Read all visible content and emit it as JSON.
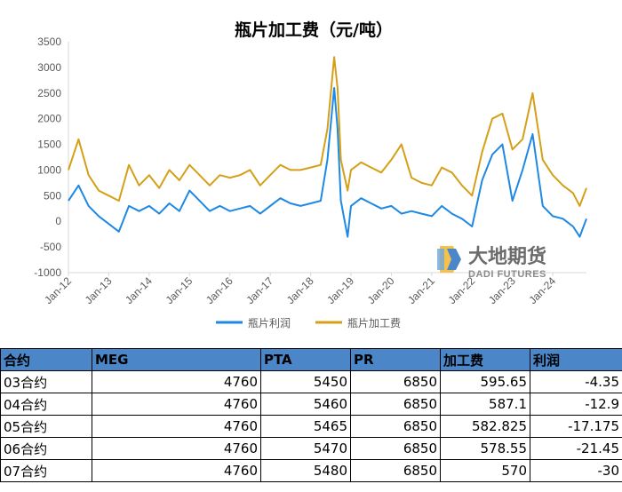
{
  "chart_data": {
    "type": "line",
    "title": "瓶片加工费（元/吨）",
    "ylim": [
      -1000,
      3500
    ],
    "yticks": [
      3500,
      3000,
      2500,
      2000,
      1500,
      1000,
      500,
      0,
      -500,
      -1000
    ],
    "xlim": [
      "2012-01",
      "2024-11"
    ],
    "xticks": [
      "Jan-12",
      "Jan-13",
      "Jan-14",
      "Jan-15",
      "Jan-16",
      "Jan-17",
      "Jan-18",
      "Jan-19",
      "Jan-20",
      "Jan-21",
      "Jan-22",
      "Jan-23",
      "Jan-24"
    ],
    "legend_position": "bottom",
    "grid": false,
    "x": [
      "2012-01",
      "2012-04",
      "2012-07",
      "2012-10",
      "2013-01",
      "2013-04",
      "2013-07",
      "2013-10",
      "2014-01",
      "2014-04",
      "2014-07",
      "2014-10",
      "2015-01",
      "2015-04",
      "2015-07",
      "2015-10",
      "2016-01",
      "2016-04",
      "2016-07",
      "2016-10",
      "2017-01",
      "2017-04",
      "2017-07",
      "2017-10",
      "2018-01",
      "2018-04",
      "2018-06",
      "2018-08",
      "2018-09",
      "2018-10",
      "2018-12",
      "2019-01",
      "2019-04",
      "2019-07",
      "2019-10",
      "2020-01",
      "2020-04",
      "2020-07",
      "2020-10",
      "2021-01",
      "2021-04",
      "2021-07",
      "2021-10",
      "2022-01",
      "2022-04",
      "2022-07",
      "2022-10",
      "2023-01",
      "2023-04",
      "2023-07",
      "2023-10",
      "2024-01",
      "2024-04",
      "2024-07",
      "2024-09",
      "2024-11"
    ],
    "series": [
      {
        "name": "瓶片利润",
        "color": "#1e88e5",
        "values": [
          400,
          700,
          300,
          100,
          -50,
          -200,
          300,
          200,
          300,
          150,
          350,
          200,
          600,
          400,
          200,
          300,
          200,
          250,
          300,
          150,
          300,
          450,
          350,
          300,
          350,
          400,
          1200,
          2600,
          1800,
          400,
          -300,
          300,
          450,
          350,
          250,
          300,
          150,
          200,
          150,
          100,
          300,
          150,
          50,
          -100,
          800,
          1300,
          1500,
          400,
          1000,
          1700,
          300,
          100,
          50,
          -100,
          -300,
          50
        ]
      },
      {
        "name": "瓶片加工费",
        "color": "#d4a017",
        "values": [
          1000,
          1600,
          900,
          600,
          500,
          400,
          1100,
          700,
          900,
          650,
          1000,
          800,
          1100,
          900,
          700,
          900,
          850,
          900,
          1000,
          700,
          900,
          1100,
          1000,
          1000,
          1050,
          1100,
          1800,
          3200,
          2600,
          1200,
          600,
          1000,
          1150,
          1050,
          950,
          1200,
          1500,
          850,
          750,
          700,
          1050,
          950,
          700,
          500,
          1350,
          2000,
          2100,
          1400,
          1600,
          2500,
          1200,
          900,
          700,
          550,
          300,
          650
        ]
      }
    ]
  },
  "logo": {
    "name_cn": "大地期货",
    "name_en": "DADI FUTURES"
  },
  "table": {
    "headers": [
      "合约",
      "MEG",
      "PTA",
      "PR",
      "加工费",
      "利润"
    ],
    "rows": [
      [
        "03合约",
        "4760",
        "5450",
        "6850",
        "595.65",
        "-4.35"
      ],
      [
        "04合约",
        "4760",
        "5460",
        "6850",
        "587.1",
        "-12.9"
      ],
      [
        "05合约",
        "4760",
        "5465",
        "6850",
        "582.825",
        "-17.175"
      ],
      [
        "06合约",
        "4760",
        "5470",
        "6850",
        "578.55",
        "-21.45"
      ],
      [
        "07合约",
        "4760",
        "5480",
        "6850",
        "570",
        "-30"
      ]
    ]
  }
}
